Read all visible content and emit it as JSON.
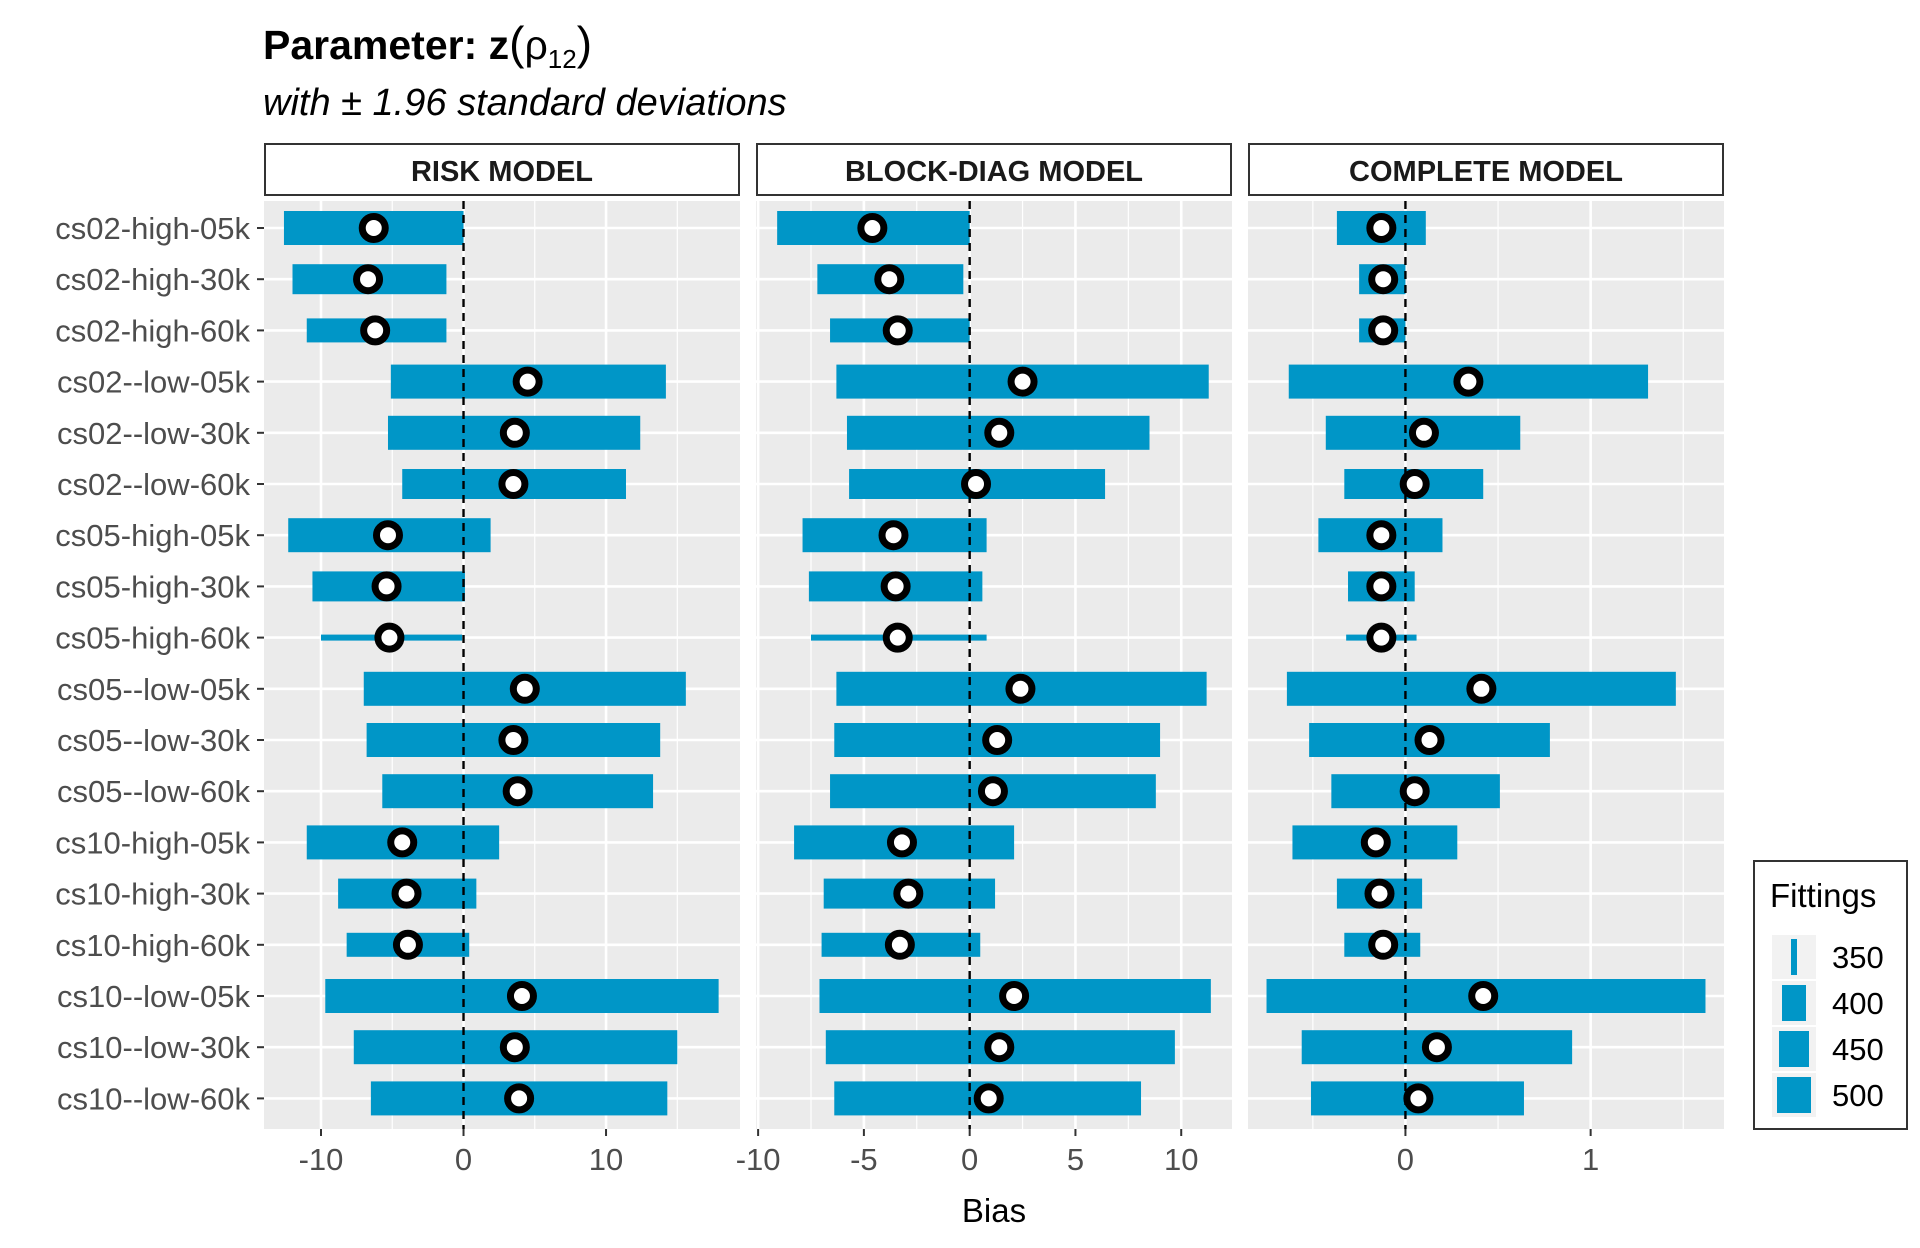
{
  "title": {
    "prefix": "Parameter: z",
    "open_paren": "(",
    "symbol": "ρ",
    "subscript": "12",
    "close_paren": ")"
  },
  "subtitle": "with ± 1.96 standard deviations",
  "colors": {
    "bar": "#0096C7",
    "panel_bg": "#EBEBEB",
    "grid": "#FFFFFF"
  },
  "chart_data": {
    "type": "bar",
    "orientation": "horizontal interval bars with point estimates",
    "xlabel": "Bias",
    "categories": [
      "cs02-high-05k",
      "cs02-high-30k",
      "cs02-high-60k",
      "cs02--low-05k",
      "cs02--low-30k",
      "cs02--low-60k",
      "cs05-high-05k",
      "cs05-high-30k",
      "cs05-high-60k",
      "cs05--low-05k",
      "cs05--low-30k",
      "cs05--low-60k",
      "cs10-high-05k",
      "cs10-high-30k",
      "cs10-high-60k",
      "cs10--low-05k",
      "cs10--low-30k",
      "cs10--low-60k"
    ],
    "fittings": [
      500,
      450,
      400,
      500,
      500,
      450,
      500,
      450,
      350,
      500,
      500,
      500,
      500,
      450,
      400,
      500,
      500,
      500
    ],
    "legend": {
      "title": "Fittings",
      "values": [
        350,
        400,
        450,
        500
      ],
      "placement": "right"
    },
    "reference_line": 0,
    "panels": [
      {
        "name": "RISK MODEL",
        "xlim": [
          -14,
          19.4
        ],
        "ticks": [
          -10,
          0,
          10
        ],
        "tick_labels": [
          "-10",
          "0",
          "10"
        ],
        "estimates": [
          -6.3,
          -6.7,
          -6.2,
          4.5,
          3.6,
          3.5,
          -5.3,
          -5.4,
          -5.2,
          4.3,
          3.5,
          3.8,
          -4.3,
          -4.0,
          -3.9,
          4.1,
          3.6,
          3.9
        ],
        "lower": [
          -12.6,
          -12.0,
          -11.0,
          -5.1,
          -5.3,
          -4.3,
          -12.3,
          -10.6,
          -10.0,
          -7.0,
          -6.8,
          -5.7,
          -11.0,
          -8.8,
          -8.2,
          -9.7,
          -7.7,
          -6.5
        ],
        "upper": [
          0.0,
          -1.2,
          -1.2,
          14.2,
          12.4,
          11.4,
          1.9,
          0.1,
          -0.1,
          15.6,
          13.8,
          13.3,
          2.5,
          0.9,
          0.4,
          17.9,
          15.0,
          14.3
        ]
      },
      {
        "name": "BLOCK-DIAG MODEL",
        "xlim": [
          -10.1,
          12.4
        ],
        "ticks": [
          -10,
          -5,
          0,
          5,
          10
        ],
        "tick_labels": [
          "-10",
          "-5",
          "0",
          "5",
          "10"
        ],
        "estimates": [
          -4.6,
          -3.8,
          -3.4,
          2.5,
          1.4,
          0.3,
          -3.6,
          -3.5,
          -3.4,
          2.4,
          1.3,
          1.1,
          -3.2,
          -2.9,
          -3.3,
          2.1,
          1.4,
          0.9
        ],
        "lower": [
          -9.1,
          -7.2,
          -6.6,
          -6.3,
          -5.8,
          -5.7,
          -7.9,
          -7.6,
          -7.5,
          -6.3,
          -6.4,
          -6.6,
          -8.3,
          -6.9,
          -7.0,
          -7.1,
          -6.8,
          -6.4
        ],
        "upper": [
          0.0,
          -0.3,
          0.0,
          11.3,
          8.5,
          6.4,
          0.8,
          0.6,
          0.8,
          11.2,
          9.0,
          8.8,
          2.1,
          1.2,
          0.5,
          11.4,
          9.7,
          8.1
        ]
      },
      {
        "name": "COMPLETE MODEL",
        "xlim": [
          -0.85,
          1.72
        ],
        "ticks": [
          0,
          1
        ],
        "tick_labels": [
          "0",
          "1"
        ],
        "estimates": [
          -0.13,
          -0.12,
          -0.12,
          0.34,
          0.1,
          0.05,
          -0.13,
          -0.13,
          -0.13,
          0.41,
          0.13,
          0.05,
          -0.16,
          -0.14,
          -0.12,
          0.42,
          0.17,
          0.07
        ],
        "lower": [
          -0.37,
          -0.25,
          -0.25,
          -0.63,
          -0.43,
          -0.33,
          -0.47,
          -0.31,
          -0.32,
          -0.64,
          -0.52,
          -0.4,
          -0.61,
          -0.37,
          -0.33,
          -0.75,
          -0.56,
          -0.51
        ],
        "upper": [
          0.11,
          0.0,
          0.0,
          1.31,
          0.62,
          0.42,
          0.2,
          0.05,
          0.06,
          1.46,
          0.78,
          0.51,
          0.28,
          0.09,
          0.08,
          1.62,
          0.9,
          0.64
        ]
      }
    ]
  }
}
